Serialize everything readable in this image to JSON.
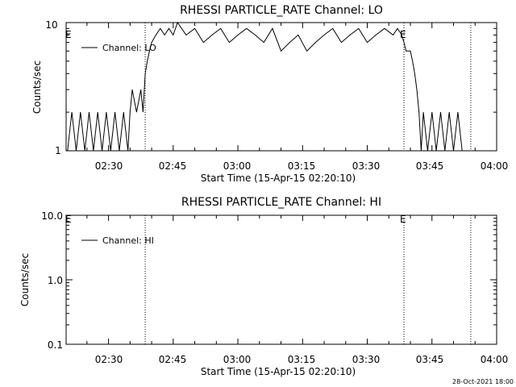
{
  "footer": {
    "timestamp": "28-Oct-2021 18:00"
  },
  "chart_data": [
    {
      "type": "line",
      "title": "RHESSI PARTICLE_RATE Channel: LO",
      "xlabel": "Start Time (15-Apr-15 02:20:10)",
      "ylabel": "Counts/sec",
      "yscale": "log",
      "xlim": [
        "02:20:10",
        "04:00:00"
      ],
      "ylim": [
        1,
        10
      ],
      "x_ticks": [
        "02:30",
        "02:45",
        "03:00",
        "03:15",
        "03:30",
        "03:45",
        "04:00"
      ],
      "y_ticks": [
        "1",
        "10"
      ],
      "legend": {
        "position": "top-left",
        "entries": [
          "Channel: LO"
        ]
      },
      "annotations": [
        "E",
        "E"
      ],
      "vertical_lines": [
        "02:38:30",
        "03:38:30",
        "03:54:00"
      ],
      "series": [
        {
          "name": "Channel: LO",
          "x": [
            "02:20:30",
            "02:21:30",
            "02:22:30",
            "02:23:30",
            "02:24:30",
            "02:25:30",
            "02:26:30",
            "02:27:30",
            "02:28:30",
            "02:29:30",
            "02:30:30",
            "02:31:30",
            "02:32:30",
            "02:33:30",
            "02:34:30",
            "02:35:00",
            "02:35:30",
            "02:36:30",
            "02:37:30",
            "02:38:00",
            "02:38:30",
            "02:39:00",
            "02:39:30",
            "02:40:00",
            "02:41:00",
            "02:42:00",
            "02:43:00",
            "02:44:00",
            "02:45:00",
            "02:46:00",
            "02:48:00",
            "02:50:00",
            "02:52:00",
            "02:54:00",
            "02:56:00",
            "02:58:00",
            "03:00:00",
            "03:02:00",
            "03:04:00",
            "03:06:00",
            "03:08:00",
            "03:10:00",
            "03:12:00",
            "03:14:00",
            "03:16:00",
            "03:18:00",
            "03:20:00",
            "03:22:00",
            "03:24:00",
            "03:26:00",
            "03:28:00",
            "03:30:00",
            "03:32:00",
            "03:34:00",
            "03:36:00",
            "03:37:00",
            "03:38:00",
            "03:38:30",
            "03:39:00",
            "03:40:00",
            "03:40:30",
            "03:41:00",
            "03:41:30",
            "03:42:00",
            "03:42:30",
            "03:43:00",
            "03:44:00",
            "03:45:00",
            "03:46:00",
            "03:47:00",
            "03:48:00",
            "03:49:00",
            "03:50:00",
            "03:51:00",
            "03:52:00"
          ],
          "y": [
            1,
            2,
            1,
            2,
            1,
            2,
            1,
            2,
            1,
            2,
            1,
            2,
            1,
            2,
            1,
            2,
            3,
            2,
            3,
            2,
            4,
            5,
            6,
            7,
            8,
            9,
            8,
            9,
            8,
            10,
            8,
            9,
            7,
            8,
            9,
            7,
            8,
            9,
            8,
            7,
            9,
            6,
            7,
            8,
            6,
            7,
            8,
            9,
            7,
            8,
            9,
            7,
            8,
            9,
            8,
            9,
            8,
            7,
            6,
            6,
            5,
            4,
            3,
            2,
            1,
            2,
            1,
            2,
            1,
            2,
            1,
            2,
            1,
            2,
            1
          ]
        }
      ]
    },
    {
      "type": "line",
      "title": "RHESSI PARTICLE_RATE Channel: HI",
      "xlabel": "Start Time (15-Apr-15 02:20:10)",
      "ylabel": "Counts/sec",
      "yscale": "log",
      "xlim": [
        "02:20:10",
        "04:00:00"
      ],
      "ylim": [
        0.1,
        10
      ],
      "x_ticks": [
        "02:30",
        "02:45",
        "03:00",
        "03:15",
        "03:30",
        "03:45",
        "04:00"
      ],
      "y_ticks": [
        "0.1",
        "1.0",
        "10.0"
      ],
      "legend": {
        "position": "top-left",
        "entries": [
          "Channel: HI"
        ]
      },
      "annotations": [
        "E",
        "E"
      ],
      "vertical_lines": [
        "02:38:30",
        "03:38:30",
        "03:54:00"
      ],
      "series": [
        {
          "name": "Channel: HI",
          "x": [],
          "y": []
        }
      ]
    }
  ]
}
